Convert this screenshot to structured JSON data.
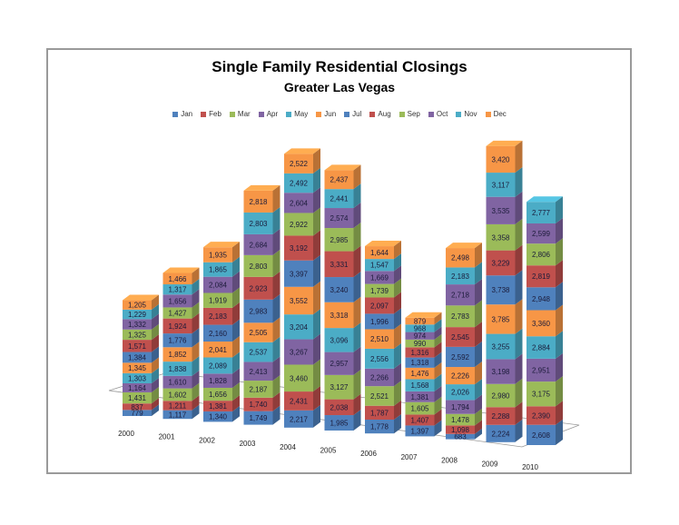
{
  "chart_data": {
    "type": "bar",
    "stacked": true,
    "three_d": true,
    "title": "Single Family Residential Closings",
    "subtitle": "Greater Las Vegas",
    "xlabel": "",
    "ylabel": "",
    "legend_position": "top",
    "categories": [
      "2000",
      "2001",
      "2002",
      "2003",
      "2004",
      "2005",
      "2006",
      "2007",
      "2008",
      "2009",
      "2010"
    ],
    "series": [
      {
        "name": "Jan",
        "color": "#4F81BD",
        "values": [
          779,
          1117,
          1340,
          1749,
          2217,
          1985,
          1778,
          1397,
          683,
          2224,
          2608
        ]
      },
      {
        "name": "Feb",
        "color": "#C0504D",
        "values": [
          837,
          1211,
          1381,
          1740,
          2431,
          2038,
          1787,
          1407,
          1098,
          2288,
          2390
        ]
      },
      {
        "name": "Mar",
        "color": "#9BBB59",
        "values": [
          1431,
          1602,
          1656,
          2187,
          3460,
          3127,
          2521,
          1605,
          1478,
          2980,
          3175
        ]
      },
      {
        "name": "Apr",
        "color": "#8064A2",
        "values": [
          1164,
          1610,
          1828,
          2413,
          3267,
          2957,
          2266,
          1381,
          1794,
          3198,
          2951
        ]
      },
      {
        "name": "May",
        "color": "#4BACC6",
        "values": [
          1303,
          1838,
          2089,
          2537,
          3204,
          3096,
          2556,
          1568,
          2026,
          3255,
          2884
        ]
      },
      {
        "name": "Jun",
        "color": "#F79646",
        "values": [
          1345,
          1852,
          2041,
          2505,
          3552,
          3318,
          2510,
          1476,
          2226,
          3785,
          3360
        ]
      },
      {
        "name": "Jul",
        "color": "#4F81BD",
        "values": [
          1384,
          1776,
          2160,
          2983,
          3397,
          3240,
          1996,
          1318,
          2592,
          3738,
          2948
        ]
      },
      {
        "name": "Aug",
        "color": "#C0504D",
        "values": [
          1571,
          1924,
          2183,
          2923,
          3192,
          3331,
          2097,
          1316,
          2545,
          3229,
          2819
        ]
      },
      {
        "name": "Sep",
        "color": "#9BBB59",
        "values": [
          1325,
          1427,
          1919,
          2803,
          2922,
          2985,
          1739,
          990,
          2783,
          3358,
          2806
        ]
      },
      {
        "name": "Oct",
        "color": "#8064A2",
        "values": [
          1332,
          1656,
          2084,
          2684,
          2604,
          2574,
          1669,
          974,
          2718,
          3535,
          2599
        ]
      },
      {
        "name": "Nov",
        "color": "#4BACC6",
        "values": [
          1229,
          1317,
          1865,
          2803,
          2492,
          2441,
          1547,
          968,
          2183,
          3117,
          2777
        ]
      },
      {
        "name": "Dec",
        "color": "#F79646",
        "values": [
          1205,
          1466,
          1935,
          2818,
          2522,
          2437,
          1644,
          879,
          2498,
          3420,
          null
        ]
      }
    ],
    "value_labels": [
      [
        "779",
        "837",
        "1,431",
        "1,164",
        "1,303",
        "1,345",
        "1,384",
        "1,571",
        "1,325",
        "1,332",
        "1,229",
        "1,205"
      ],
      [
        "1,117",
        "1,211",
        "1,602",
        "1,610",
        "1,838",
        "1,852",
        "1,776",
        "1,924",
        "1,427",
        "1,656",
        "1,317",
        "1,466"
      ],
      [
        "1,340",
        "1,381",
        "1,656",
        "1,828",
        "2,089",
        "2,041",
        "2,160",
        "2,183",
        "1,919",
        "2,084",
        "1,865",
        "1,935"
      ],
      [
        "1,749",
        "1,740",
        "2,187",
        "2,413",
        "2,537",
        "2,505",
        "2,983",
        "2,923",
        "2,803",
        "2,684",
        "2,803",
        "2,818"
      ],
      [
        "2,217",
        "2,431",
        "3,460",
        "3,267",
        "3,204",
        "3,552",
        "3,397",
        "3,192",
        "2,922",
        "2,604",
        "2,492",
        "2,522"
      ],
      [
        "1,985",
        "2,038",
        "3,127",
        "2,957",
        "3,096",
        "3,318",
        "3,240",
        "3,331",
        "2,985",
        "2,574",
        "2,441",
        "2,437"
      ],
      [
        "1,778",
        "1,787",
        "2,521",
        "2,266",
        "2,556",
        "2,510",
        "1,996",
        "2,097",
        "1,739",
        "1,669",
        "1,547",
        "1,644"
      ],
      [
        "1,397",
        "1,407",
        "1,605",
        "1,381",
        "1,568",
        "1,476",
        "1,318",
        "1,316",
        "990",
        "974",
        "968",
        "879"
      ],
      [
        "683",
        "1,098",
        "1,478",
        "1,794",
        "2,026",
        "2,226",
        "2,592",
        "2,545",
        "2,783",
        "2,718",
        "2,183",
        "2,498"
      ],
      [
        "2,224",
        "2,288",
        "2,980",
        "3,198",
        "3,255",
        "3,785",
        "3,738",
        "3,229",
        "3,358",
        "3,535",
        "3,117",
        "3,420"
      ],
      [
        "2,608",
        "2,390",
        "3,175",
        "2,951",
        "2,884",
        "3,360",
        "2,948",
        "2,819",
        "2,806",
        "2,599",
        "2,777"
      ]
    ]
  },
  "legend": [
    {
      "label": "Jan",
      "color": "#4F81BD"
    },
    {
      "label": "Feb",
      "color": "#C0504D"
    },
    {
      "label": "Mar",
      "color": "#9BBB59"
    },
    {
      "label": "Apr",
      "color": "#8064A2"
    },
    {
      "label": "May",
      "color": "#4BACC6"
    },
    {
      "label": "Jun",
      "color": "#F79646"
    },
    {
      "label": "Jul",
      "color": "#4F81BD"
    },
    {
      "label": "Aug",
      "color": "#C0504D"
    },
    {
      "label": "Sep",
      "color": "#9BBB59"
    },
    {
      "label": "Oct",
      "color": "#8064A2"
    },
    {
      "label": "Nov",
      "color": "#4BACC6"
    },
    {
      "label": "Dec",
      "color": "#F79646"
    }
  ]
}
